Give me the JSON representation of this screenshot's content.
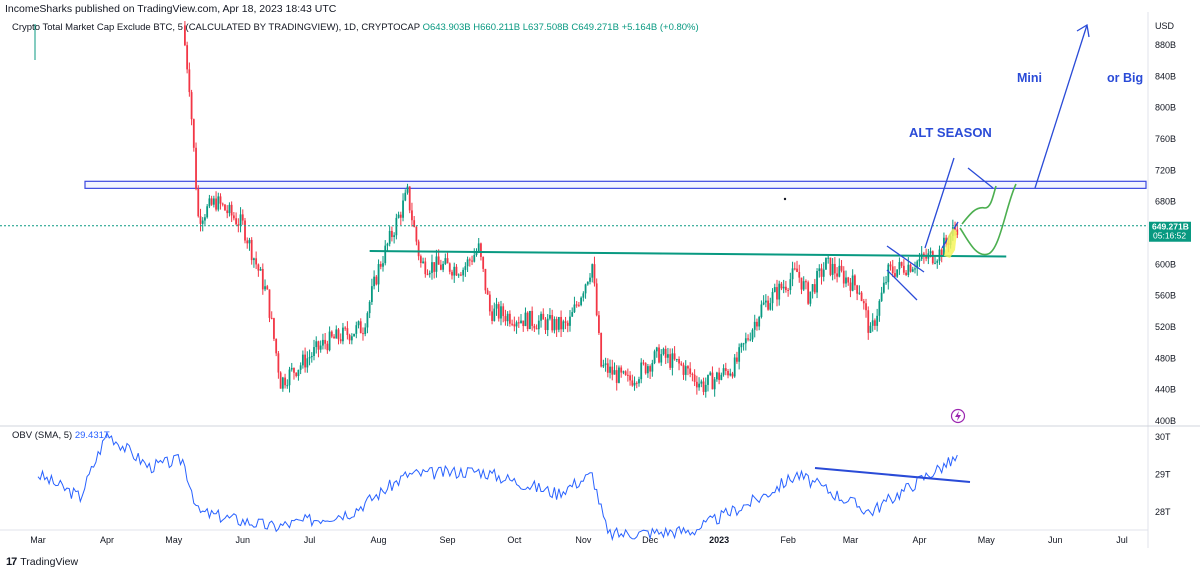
{
  "header": {
    "publisher": "IncomeSharks published on TradingView.com, Apr 18, 2023 18:43 UTC"
  },
  "legend": {
    "symbol": "Crypto Total Market Cap Exclude BTC, 5 (CALCULATED BY TRADINGVIEW), 1D, CRYPTOCAP",
    "open": "O643.903B",
    "high": "H660.211B",
    "low": "L637.508B",
    "close": "C649.271B",
    "change": "+5.164B (+0.80%)"
  },
  "price_tag": {
    "value": "649.271B",
    "countdown": "05:16:52"
  },
  "obv_legend": {
    "name": "OBV (SMA, 5)",
    "value": "29.431T"
  },
  "footer": {
    "brand": "TradingView"
  },
  "colors": {
    "up": "#089981",
    "down": "#f23645",
    "trend_line": "#089981",
    "annotation_blue": "#2a4bd7",
    "projection_green": "#4caf50",
    "highlight_yellow": "#f5f55a",
    "obv_line": "#2962ff",
    "resistance_zone": "#3b47e0"
  },
  "chart_data": {
    "type": "candlestick",
    "title": "Crypto Total Market Cap Exclude BTC, 5 (CALCULATED BY TRADINGVIEW), 1D, CRYPTOCAP",
    "currency": "USD",
    "x_labels": [
      "Mar",
      "Apr",
      "May",
      "Jun",
      "Jul",
      "Aug",
      "Sep",
      "Oct",
      "Nov",
      "Dec",
      "2023",
      "Feb",
      "Mar",
      "Apr",
      "May",
      "Jun",
      "Jul"
    ],
    "y_ticks": [
      "880B",
      "840B",
      "800B",
      "760B",
      "720B",
      "680B",
      "640B",
      "600B",
      "560B",
      "520B",
      "480B",
      "440B",
      "400B"
    ],
    "ylim": [
      395,
      905
    ],
    "price_path": [
      {
        "date": "2022-05-05",
        "value": 905
      },
      {
        "date": "2022-05-08",
        "value": 830
      },
      {
        "date": "2022-05-12",
        "value": 660
      },
      {
        "date": "2022-05-20",
        "value": 680
      },
      {
        "date": "2022-06-01",
        "value": 650
      },
      {
        "date": "2022-06-12",
        "value": 560
      },
      {
        "date": "2022-06-18",
        "value": 450
      },
      {
        "date": "2022-07-08",
        "value": 500
      },
      {
        "date": "2022-07-25",
        "value": 520
      },
      {
        "date": "2022-08-01",
        "value": 595
      },
      {
        "date": "2022-08-14",
        "value": 690
      },
      {
        "date": "2022-08-20",
        "value": 600
      },
      {
        "date": "2022-09-08",
        "value": 595
      },
      {
        "date": "2022-09-15",
        "value": 620
      },
      {
        "date": "2022-09-20",
        "value": 540
      },
      {
        "date": "2022-10-05",
        "value": 530
      },
      {
        "date": "2022-10-25",
        "value": 520
      },
      {
        "date": "2022-11-05",
        "value": 600
      },
      {
        "date": "2022-11-09",
        "value": 470
      },
      {
        "date": "2022-11-21",
        "value": 450
      },
      {
        "date": "2022-12-05",
        "value": 485
      },
      {
        "date": "2022-12-15",
        "value": 470
      },
      {
        "date": "2022-12-25",
        "value": 445
      },
      {
        "date": "2023-01-08",
        "value": 470
      },
      {
        "date": "2023-01-20",
        "value": 545
      },
      {
        "date": "2023-02-05",
        "value": 590
      },
      {
        "date": "2023-02-10",
        "value": 560
      },
      {
        "date": "2023-02-18",
        "value": 600
      },
      {
        "date": "2023-03-05",
        "value": 570
      },
      {
        "date": "2023-03-10",
        "value": 510
      },
      {
        "date": "2023-03-18",
        "value": 590
      },
      {
        "date": "2023-03-28",
        "value": 600
      },
      {
        "date": "2023-04-10",
        "value": 615
      },
      {
        "date": "2023-04-18",
        "value": 649.271
      }
    ],
    "last_close": 649.271,
    "resistance_zone": [
      697,
      706
    ],
    "support_line": {
      "from": [
        "2022-07-28",
        617
      ],
      "to": [
        "2023-05-10",
        610
      ]
    },
    "annotations": [
      {
        "text": "ALT SEASON",
        "near": "2023-04-18"
      },
      {
        "text": "Mini",
        "near": "2023-05-05"
      },
      {
        "text": "or Big",
        "near": "2023-06-05"
      }
    ],
    "obv": {
      "name": "OBV (SMA, 5)",
      "y_ticks": [
        "30T",
        "29T",
        "28T"
      ],
      "ylim": [
        27.4,
        30.2
      ],
      "path": [
        {
          "date": "2022-03-01",
          "value": 29.0
        },
        {
          "date": "2022-03-20",
          "value": 28.4
        },
        {
          "date": "2022-04-01",
          "value": 30.1
        },
        {
          "date": "2022-04-20",
          "value": 29.2
        },
        {
          "date": "2022-05-05",
          "value": 29.4
        },
        {
          "date": "2022-05-12",
          "value": 28.0
        },
        {
          "date": "2022-06-15",
          "value": 27.6
        },
        {
          "date": "2022-07-20",
          "value": 28.0
        },
        {
          "date": "2022-08-14",
          "value": 29.0
        },
        {
          "date": "2022-09-15",
          "value": 29.1
        },
        {
          "date": "2022-10-20",
          "value": 28.5
        },
        {
          "date": "2022-11-05",
          "value": 29.0
        },
        {
          "date": "2022-11-12",
          "value": 27.4
        },
        {
          "date": "2022-12-20",
          "value": 27.5
        },
        {
          "date": "2023-01-20",
          "value": 28.4
        },
        {
          "date": "2023-02-05",
          "value": 29.0
        },
        {
          "date": "2023-03-10",
          "value": 28.0
        },
        {
          "date": "2023-04-05",
          "value": 29.0
        },
        {
          "date": "2023-04-18",
          "value": 29.43
        }
      ]
    }
  }
}
